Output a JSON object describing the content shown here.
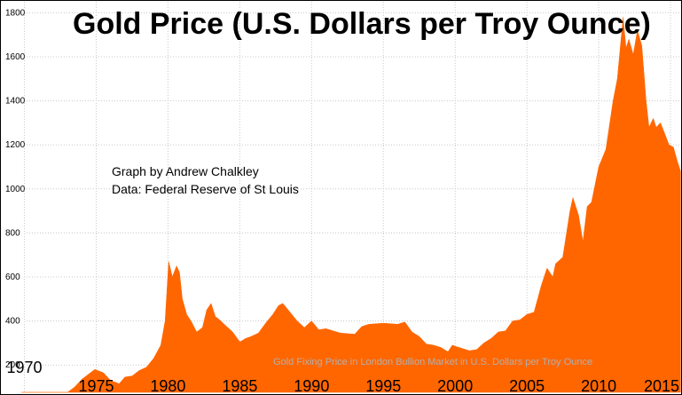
{
  "chart_data": {
    "type": "area",
    "title": "Gold Price (U.S. Dollars per Troy Ounce)",
    "credit_lines": [
      "Graph by Andrew Chalkley",
      "Data: Federal Reserve of St Louis"
    ],
    "note": "Gold Fixing Price in London Bullion Market in U.S. Dollars per Troy Ounce",
    "xlabel": "",
    "ylabel": "",
    "xlim": [
      1968.3,
      2015.8
    ],
    "ylim": [
      100,
      1850
    ],
    "grid": true,
    "x_ticks": [
      1970,
      1975,
      1980,
      1985,
      1990,
      1995,
      2000,
      2005,
      2010,
      2015
    ],
    "y_ticks": [
      200,
      400,
      600,
      800,
      1000,
      1200,
      1400,
      1600,
      1800
    ],
    "colors": {
      "fill": "#ff6600",
      "grid": "#c8c8c8",
      "note": "#b0b0b0"
    },
    "series": [
      {
        "x": [
          1969.8,
          1970.5,
          1971.0,
          1971.5,
          1972.0,
          1972.5,
          1973.0,
          1973.5,
          1974.0,
          1974.5,
          1974.9,
          1975.5,
          1976.0,
          1976.6,
          1977.0,
          1977.5,
          1978.0,
          1978.5,
          1979.0,
          1979.5,
          1979.8,
          1980.05,
          1980.3,
          1980.6,
          1980.8,
          1981.0,
          1981.3,
          1981.6,
          1982.0,
          1982.4,
          1982.7,
          1983.0,
          1983.3,
          1983.6,
          1984.0,
          1984.5,
          1985.0,
          1985.4,
          1985.8,
          1986.3,
          1986.8,
          1987.3,
          1987.7,
          1988.0,
          1988.5,
          1989.0,
          1989.5,
          1990.0,
          1990.5,
          1991.0,
          1992.0,
          1993.0,
          1993.5,
          1994.0,
          1995.0,
          1996.0,
          1996.5,
          1997.0,
          1997.5,
          1998.0,
          1998.5,
          1999.0,
          1999.5,
          1999.8,
          2000.0,
          2000.5,
          2001.0,
          2001.5,
          2002.0,
          2002.5,
          2003.0,
          2003.5,
          2004.0,
          2004.5,
          2005.0,
          2005.5,
          2006.0,
          2006.4,
          2006.8,
          2007.0,
          2007.5,
          2008.0,
          2008.2,
          2008.6,
          2008.9,
          2009.2,
          2009.5,
          2010.0,
          2010.5,
          2011.0,
          2011.3,
          2011.7,
          2011.9,
          2012.1,
          2012.4,
          2012.7,
          2013.0,
          2013.3,
          2013.5,
          2013.8,
          2014.0,
          2014.3,
          2014.6,
          2014.9,
          2015.2,
          2015.5,
          2015.7
        ],
        "y": [
          35,
          35,
          38,
          40,
          46,
          62,
          65,
          100,
          135,
          160,
          180,
          165,
          130,
          115,
          145,
          150,
          175,
          190,
          230,
          290,
          400,
          670,
          600,
          650,
          620,
          500,
          430,
          400,
          350,
          370,
          450,
          480,
          420,
          405,
          380,
          350,
          305,
          320,
          330,
          345,
          390,
          430,
          470,
          480,
          440,
          400,
          370,
          400,
          360,
          365,
          345,
          340,
          375,
          385,
          390,
          385,
          395,
          350,
          330,
          295,
          290,
          280,
          260,
          290,
          285,
          275,
          265,
          270,
          300,
          320,
          350,
          355,
          400,
          405,
          430,
          440,
          560,
          640,
          600,
          660,
          690,
          900,
          960,
          880,
          760,
          920,
          940,
          1100,
          1180,
          1400,
          1500,
          1780,
          1640,
          1680,
          1610,
          1720,
          1650,
          1400,
          1280,
          1320,
          1280,
          1300,
          1250,
          1200,
          1190,
          1120,
          1080
        ]
      }
    ]
  }
}
